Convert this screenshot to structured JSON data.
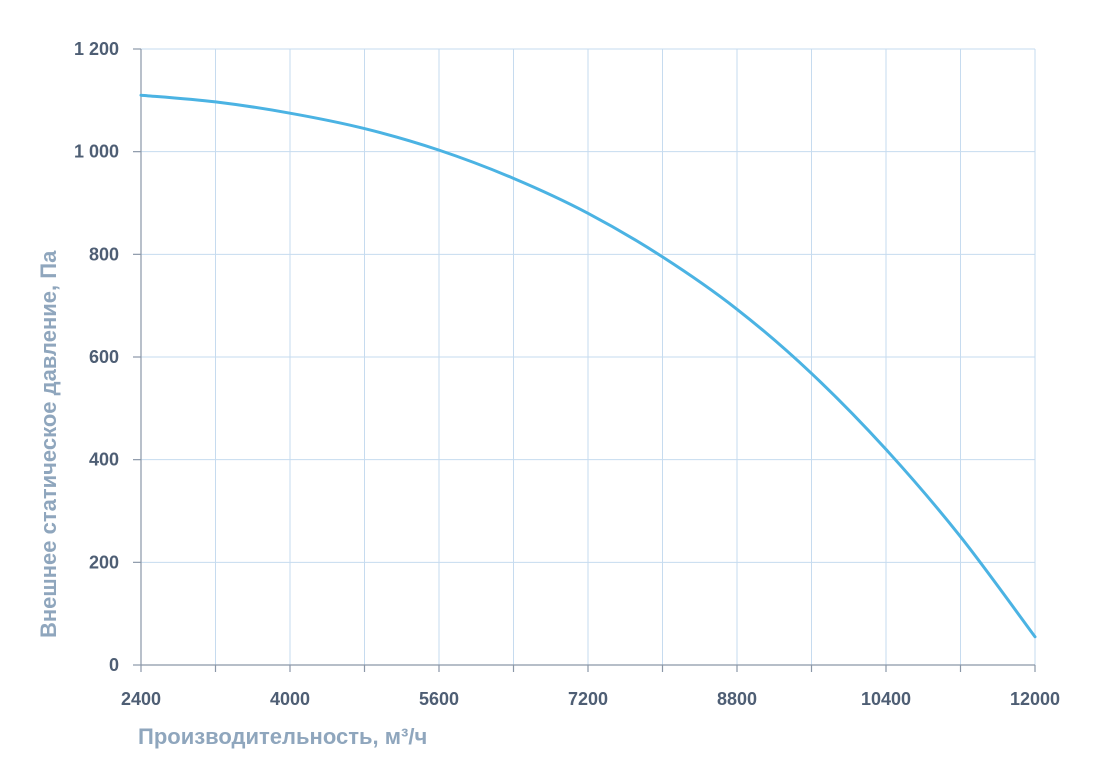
{
  "chart_data": {
    "type": "line",
    "xlabel": "Производительность, м³/ч",
    "ylabel": "Внешнее статическое давление, Па",
    "xlim": [
      2400,
      12000
    ],
    "ylim": [
      0,
      1200
    ],
    "x_ticks": [
      "2400",
      "4000",
      "5600",
      "7200",
      "8800",
      "10400",
      "12000"
    ],
    "x_minor_ticks": [
      3200,
      4800,
      6400,
      8000,
      9600,
      11200
    ],
    "y_ticks": [
      "0",
      "200",
      "400",
      "600",
      "800",
      "1 000",
      "1 200"
    ],
    "grid": true,
    "series": [
      {
        "color": "#4bb3e3",
        "x": [
          2400,
          3200,
          4000,
          4800,
          5600,
          6400,
          7200,
          8000,
          8800,
          9600,
          10400,
          11200,
          12000
        ],
        "y": [
          1110,
          1097,
          1075,
          1045,
          1003,
          948,
          880,
          795,
          693,
          568,
          420,
          250,
          55
        ]
      }
    ]
  }
}
